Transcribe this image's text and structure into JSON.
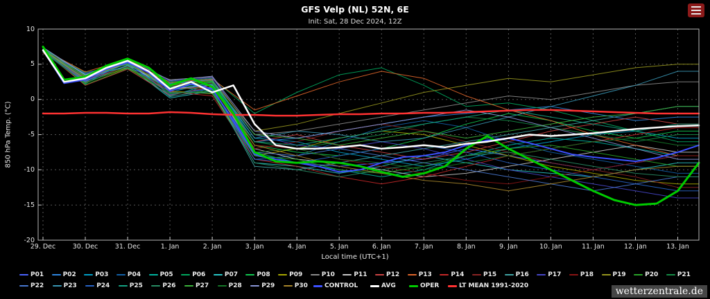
{
  "header": {
    "title": "GFS Velp (NL) 52N, 6E",
    "init_line": "Init: Sat, 28 Dec 2024, 12Z"
  },
  "footer": {
    "watermark": "wetterzentrale.de"
  },
  "chart_data": {
    "type": "line",
    "title": "GFS Velp (NL) 52N, 6E",
    "subtitle": "Init: Sat, 28 Dec 2024, 12Z",
    "ylabel": "850 hPa Temp. (°C)",
    "xlabel": "Local time (UTC+1)",
    "ylim": [
      -20,
      10
    ],
    "xlim_days": [
      0,
      15.5
    ],
    "grid": "dashed-gray",
    "legend_position": "bottom",
    "y_ticks": [
      10,
      5,
      0,
      -5,
      -10,
      -15,
      -20
    ],
    "x_tick_positions": [
      0,
      1,
      2,
      3,
      4,
      5,
      6,
      7,
      8,
      9,
      10,
      11,
      12,
      13,
      14,
      15
    ],
    "x_tick_labels": [
      "29. Dec",
      "30. Dec",
      "31. Dec",
      "1. Jan",
      "2. Jan",
      "3. Jan",
      "4. Jan",
      "5. Jan",
      "6. Jan",
      "7. Jan",
      "8. Jan",
      "9. Jan",
      "10. Jan",
      "11. Jan",
      "12. Jan",
      "13. Jan"
    ],
    "main_series": [
      {
        "name": "CONTROL",
        "color": "#3c50ff",
        "width": 2,
        "x_step": 0.5,
        "values": [
          7,
          2.3,
          2.8,
          4.3,
          5.3,
          3.8,
          1.2,
          2.2,
          1.5,
          -3,
          -7.8,
          -8.5,
          -9,
          -9.5,
          -10.3,
          -10,
          -9,
          -8.2,
          -8,
          -7.5,
          -6.5,
          -5.8,
          -5.5,
          -6.2,
          -7,
          -7.8,
          -8.2,
          -8.5,
          -8.8,
          -8.3,
          -7.5,
          -6.5
        ]
      },
      {
        "name": "AVG",
        "color": "#ffffff",
        "width": 2.5,
        "x_step": 0.5,
        "values": [
          7,
          2.5,
          3,
          4.5,
          5.5,
          4,
          1.5,
          2.5,
          1,
          2,
          -3.5,
          -6.5,
          -7,
          -7,
          -6.8,
          -6.5,
          -7,
          -6.8,
          -6.5,
          -6.8,
          -6.3,
          -6,
          -5.5,
          -5,
          -5.2,
          -5,
          -4.8,
          -4.5,
          -4.2,
          -4,
          -3.8,
          -3.7
        ]
      },
      {
        "name": "OPER",
        "color": "#00cc00",
        "width": 3,
        "x_step": 0.5,
        "values": [
          7.5,
          2.8,
          3.2,
          4.8,
          5.8,
          4.5,
          2,
          3,
          1.8,
          -2,
          -7.5,
          -8.8,
          -9,
          -8.8,
          -9,
          -9.5,
          -10.3,
          -11,
          -10.5,
          -9.5,
          -7,
          -5.2,
          -7,
          -8.5,
          -10,
          -11.5,
          -13,
          -14.3,
          -15,
          -14.8,
          -13,
          -9
        ]
      },
      {
        "name": "LT MEAN 1991-2020",
        "color": "#ff3232",
        "width": 2.5,
        "x_step": 0.5,
        "values": [
          -2,
          -2,
          -1.9,
          -1.9,
          -2,
          -2,
          -1.8,
          -1.9,
          -2.1,
          -2.2,
          -2.2,
          -2.3,
          -2.3,
          -2.2,
          -2.1,
          -2.1,
          -2,
          -2,
          -1.9,
          -1.9,
          -1.8,
          -1.7,
          -1.6,
          -1.5,
          -1.5,
          -1.6,
          -1.7,
          -1.8,
          -1.9,
          -2,
          -2,
          -2
        ]
      }
    ],
    "members": [
      {
        "name": "P01",
        "color": "#4a63ff",
        "x_step": 1,
        "values": [
          7.2,
          2.5,
          5.3,
          0.8,
          1.5,
          -8,
          -9,
          -9.5,
          -9,
          -8.5,
          -7,
          -8,
          -9,
          -10,
          -9,
          -8
        ]
      },
      {
        "name": "P02",
        "color": "#2e86e0",
        "x_step": 1,
        "values": [
          6.8,
          3.4,
          4.6,
          2.2,
          2.8,
          -6,
          -5.5,
          -4.5,
          -3.5,
          -2.5,
          -2,
          -1.5,
          -1,
          -2,
          -3,
          -2.5
        ]
      },
      {
        "name": "P03",
        "color": "#00a0c8",
        "x_step": 1,
        "values": [
          7.0,
          2.8,
          5.5,
          1.0,
          2.5,
          -5.5,
          -6,
          -7.5,
          -8.5,
          -9.5,
          -8.5,
          -7,
          -6,
          -5,
          -4.5,
          -5.5
        ]
      },
      {
        "name": "P04",
        "color": "#1261a8",
        "x_step": 1,
        "values": [
          7.3,
          3.6,
          4.4,
          2.0,
          1.0,
          -8.5,
          -8,
          -6,
          -4,
          -3,
          -4,
          -6,
          -7.5,
          -8.5,
          -9.5,
          -10.5
        ]
      },
      {
        "name": "P05",
        "color": "#00b4a0",
        "x_step": 1,
        "values": [
          6.9,
          2.2,
          5.8,
          0.5,
          2.2,
          -7.5,
          -9,
          -10,
          -11,
          -10,
          -8,
          -6.5,
          -5.5,
          -6,
          -7,
          -8
        ]
      },
      {
        "name": "P06",
        "color": "#00a85e",
        "x_step": 1,
        "values": [
          7.1,
          3.8,
          5.1,
          2.5,
          3.0,
          -2,
          1,
          3.5,
          4.5,
          2,
          -1,
          -0.5,
          -1.5,
          -3,
          -4.5,
          -6
        ]
      },
      {
        "name": "P07",
        "color": "#28c8c8",
        "x_step": 1,
        "values": [
          6.7,
          2.6,
          4.8,
          0.2,
          1.2,
          -9,
          -9.5,
          -10.5,
          -9.5,
          -8,
          -9,
          -10,
          -10.5,
          -11,
          -10,
          -9
        ]
      },
      {
        "name": "P08",
        "color": "#10c850",
        "x_step": 1,
        "values": [
          7.4,
          3.2,
          5.6,
          1.8,
          2.6,
          -6.5,
          -7.5,
          -8,
          -7,
          -5.5,
          -3.5,
          -2,
          -3,
          -4.5,
          -5.5,
          -4.5
        ]
      },
      {
        "name": "P09",
        "color": "#a8a800",
        "x_step": 1,
        "values": [
          7.0,
          2.4,
          4.5,
          1.2,
          0.8,
          -8,
          -7,
          -5.5,
          -4.5,
          -5,
          -6.5,
          -8,
          -9.5,
          -10.5,
          -11.5,
          -12
        ]
      },
      {
        "name": "P10",
        "color": "#8c8c8c",
        "x_step": 1,
        "values": [
          6.8,
          3.0,
          5.2,
          2.8,
          3.2,
          -5,
          -4.5,
          -3.5,
          -2.5,
          -1.5,
          -0.5,
          0.5,
          0,
          1,
          2,
          2.5
        ]
      },
      {
        "name": "P11",
        "color": "#c8c8c8",
        "x_step": 1,
        "values": [
          7.2,
          3.5,
          5.0,
          1.5,
          2.0,
          -7,
          -8.5,
          -9,
          -10,
          -11,
          -10.5,
          -9.5,
          -8.5,
          -7.5,
          -6.5,
          -7.5
        ]
      },
      {
        "name": "P12",
        "color": "#cc4444",
        "x_step": 1,
        "values": [
          6.9,
          2.0,
          4.3,
          0.6,
          1.8,
          -6,
          -5,
          -6.5,
          -7.5,
          -8.5,
          -7.5,
          -6,
          -4.5,
          -3.5,
          -2.5,
          -3.5
        ]
      },
      {
        "name": "P13",
        "color": "#e0662a",
        "x_step": 1,
        "values": [
          7.1,
          3.9,
          5.7,
          2.4,
          2.9,
          -1.5,
          0.5,
          2.5,
          4,
          3,
          0.5,
          -1.5,
          -3,
          -5,
          -6.5,
          -8
        ]
      },
      {
        "name": "P14",
        "color": "#c62828",
        "x_step": 1,
        "values": [
          6.6,
          2.7,
          4.7,
          1.1,
          0.5,
          -8.5,
          -9.5,
          -11,
          -12,
          -11,
          -9.5,
          -8,
          -7,
          -6,
          -5,
          -4
        ]
      },
      {
        "name": "P15",
        "color": "#8a2424",
        "x_step": 1,
        "values": [
          7.3,
          3.1,
          5.4,
          1.9,
          2.3,
          -7,
          -6,
          -4.5,
          -3.5,
          -4.5,
          -6,
          -7.5,
          -9,
          -10,
          -11,
          -12.5
        ]
      },
      {
        "name": "P16",
        "color": "#40a4a4",
        "x_step": 1,
        "values": [
          7.0,
          2.3,
          4.9,
          0.4,
          1.4,
          -9.5,
          -10,
          -9,
          -8,
          -7,
          -6,
          -5,
          -4,
          -3,
          -2,
          -1
        ]
      },
      {
        "name": "P17",
        "color": "#4646c8",
        "x_step": 1,
        "values": [
          6.8,
          3.7,
          5.3,
          2.6,
          3.1,
          -5,
          -6.5,
          -7,
          -6,
          -7,
          -8.5,
          -10,
          -11,
          -12,
          -13,
          -14
        ]
      },
      {
        "name": "P18",
        "color": "#8a1414",
        "x_step": 1,
        "values": [
          7.2,
          2.9,
          4.6,
          1.4,
          1.9,
          -6.5,
          -7,
          -8.5,
          -9.5,
          -10.5,
          -11.5,
          -12,
          -11,
          -10,
          -9,
          -8
        ]
      },
      {
        "name": "P19",
        "color": "#96961e",
        "x_step": 1,
        "values": [
          6.9,
          3.3,
          5.9,
          2.1,
          2.7,
          -4.5,
          -3.5,
          -2,
          -0.5,
          1,
          2,
          3,
          2.5,
          3.5,
          4.5,
          5
        ]
      },
      {
        "name": "P20",
        "color": "#28a428",
        "x_step": 1,
        "values": [
          7.1,
          2.1,
          4.4,
          0.9,
          1.1,
          -8,
          -8.5,
          -10,
          -10.5,
          -9.5,
          -8,
          -7,
          -6.5,
          -7.5,
          -8.5,
          -9.5
        ]
      },
      {
        "name": "P21",
        "color": "#148c46",
        "x_step": 1,
        "values": [
          6.7,
          3.4,
          5.1,
          1.7,
          2.4,
          -6,
          -7,
          -6,
          -5,
          -3.5,
          -2.5,
          -3,
          -4,
          -5,
          -6,
          -5
        ]
      },
      {
        "name": "P22",
        "color": "#4878d2",
        "x_step": 1,
        "values": [
          7.3,
          2.6,
          5.5,
          1.3,
          2.1,
          -7.5,
          -8,
          -7,
          -8,
          -9,
          -10,
          -11,
          -12,
          -13,
          -12,
          -11
        ]
      },
      {
        "name": "P23",
        "color": "#3896b4",
        "x_step": 1,
        "values": [
          7.0,
          3.0,
          4.8,
          2.3,
          2.8,
          -5.5,
          -4.5,
          -5,
          -6,
          -5.5,
          -4,
          -2.5,
          -1,
          0.5,
          2,
          4
        ]
      },
      {
        "name": "P24",
        "color": "#2864c8",
        "x_step": 1,
        "values": [
          6.8,
          2.5,
          5.2,
          0.7,
          1.6,
          -8.5,
          -9,
          -8,
          -7,
          -6.5,
          -7.5,
          -9,
          -10,
          -11,
          -12,
          -13
        ]
      },
      {
        "name": "P25",
        "color": "#14a484",
        "x_step": 1,
        "values": [
          7.2,
          3.6,
          4.5,
          1.6,
          2.2,
          -6,
          -6.5,
          -5.5,
          -4.5,
          -3.5,
          -2.5,
          -1.5,
          -2.5,
          -3.5,
          -4.5,
          -3.5
        ]
      },
      {
        "name": "P26",
        "color": "#288c64",
        "x_step": 1,
        "values": [
          6.9,
          2.8,
          5.6,
          1.0,
          0.9,
          -9,
          -10,
          -11,
          -10,
          -9,
          -8,
          -7.5,
          -8.5,
          -9.5,
          -10.5,
          -11
        ]
      },
      {
        "name": "P27",
        "color": "#3cb43c",
        "x_step": 1,
        "values": [
          7.1,
          3.2,
          5.0,
          2.0,
          2.5,
          -5,
          -5.5,
          -6.5,
          -5.5,
          -4.5,
          -5.5,
          -4.5,
          -3.5,
          -2.5,
          -2,
          -1
        ]
      },
      {
        "name": "P28",
        "color": "#147828",
        "x_step": 1,
        "values": [
          6.7,
          2.3,
          4.7,
          0.8,
          1.3,
          -7.5,
          -7,
          -8.5,
          -9,
          -10,
          -9,
          -8,
          -7,
          -6,
          -5.5,
          -6.5
        ]
      },
      {
        "name": "P29",
        "color": "#8a96d8",
        "x_step": 1,
        "values": [
          7.4,
          3.5,
          5.8,
          2.7,
          3.3,
          -4.5,
          -5.5,
          -4.5,
          -3.5,
          -2.5,
          -1.5,
          -2.5,
          -4,
          -5.5,
          -7,
          -8.5
        ]
      },
      {
        "name": "P30",
        "color": "#a8862a",
        "x_step": 1,
        "values": [
          7.0,
          2.9,
          5.3,
          1.5,
          1.7,
          -6.5,
          -8,
          -9.5,
          -10.5,
          -11.5,
          -12,
          -13,
          -12,
          -11,
          -10,
          -9.5
        ]
      }
    ]
  }
}
